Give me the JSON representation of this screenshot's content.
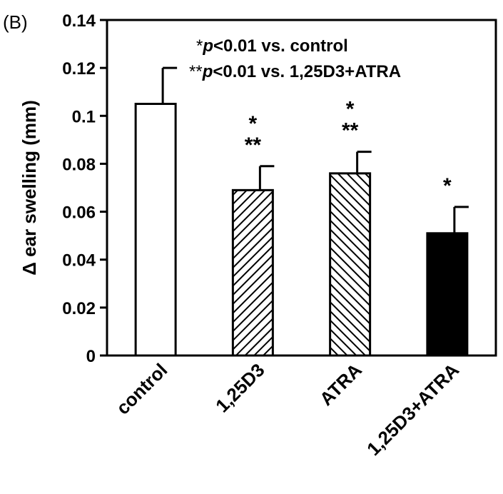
{
  "panel_label": "(B)",
  "annotations": {
    "note1": {
      "stars": "*",
      "p": "p",
      "text": "<0.01 vs. control"
    },
    "note2": {
      "stars": "**",
      "p": "p",
      "text": "<0.01 vs. 1,25D3+ATRA"
    }
  },
  "chart_data": {
    "type": "bar",
    "ylabel": "Δ ear swelling (mm)",
    "categories": [
      "control",
      "1,25D3",
      "ATRA",
      "1,25D3+ATRA"
    ],
    "values": [
      0.105,
      0.069,
      0.076,
      0.051
    ],
    "errors": [
      0.015,
      0.01,
      0.009,
      0.011
    ],
    "significance": [
      [],
      [
        "*",
        "**"
      ],
      [
        "*",
        "**"
      ],
      [
        "*"
      ]
    ],
    "fills": [
      "white",
      "hatch-backslash",
      "hatch-slash",
      "black"
    ],
    "ylim": [
      0,
      0.14
    ],
    "yticks": [
      "0",
      "0.02",
      "0.04",
      "0.06",
      "0.08",
      "0.1",
      "0.12",
      "0.14"
    ],
    "grid": false
  }
}
